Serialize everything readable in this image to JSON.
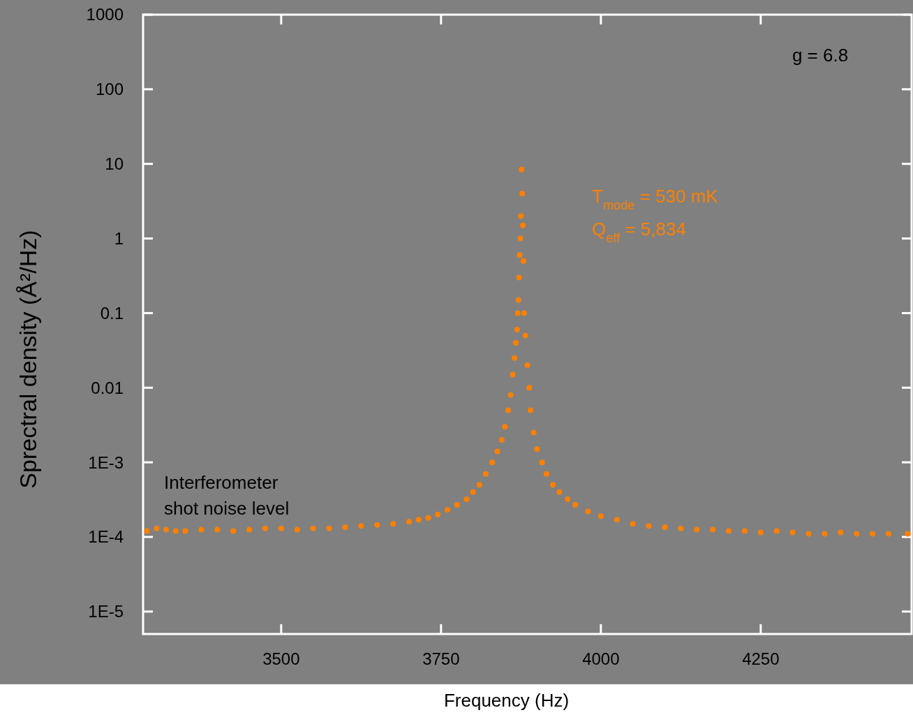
{
  "chart_data": {
    "type": "scatter",
    "xlabel": "Frequency (Hz)",
    "ylabel": "Sprectral density (Å²/Hz)",
    "x": [
      3290,
      3305,
      3320,
      3335,
      3350,
      3375,
      3400,
      3425,
      3450,
      3475,
      3500,
      3525,
      3550,
      3575,
      3600,
      3625,
      3650,
      3675,
      3700,
      3715,
      3730,
      3745,
      3760,
      3775,
      3790,
      3800,
      3810,
      3820,
      3830,
      3838,
      3845,
      3850,
      3855,
      3859,
      3862,
      3865,
      3867,
      3869,
      3870,
      3871,
      3872,
      3873,
      3874,
      3875,
      3876,
      3877,
      3878,
      3879,
      3880,
      3882,
      3885,
      3888,
      3890,
      3895,
      3900,
      3908,
      3915,
      3925,
      3935,
      3948,
      3960,
      3980,
      4000,
      4025,
      4050,
      4075,
      4100,
      4125,
      4150,
      4175,
      4200,
      4225,
      4250,
      4275,
      4300,
      4325,
      4350,
      4375,
      4400,
      4425,
      4450,
      4480
    ],
    "series": [
      {
        "color": "#ff8000",
        "values": [
          0.00012,
          0.00013,
          0.000125,
          0.00012,
          0.00012,
          0.000125,
          0.000125,
          0.00012,
          0.000125,
          0.00013,
          0.00013,
          0.000125,
          0.00013,
          0.00013,
          0.000135,
          0.00014,
          0.000145,
          0.00015,
          0.00016,
          0.00017,
          0.00018,
          0.0002,
          0.00023,
          0.00027,
          0.00032,
          0.0004,
          0.0005,
          0.0007,
          0.001,
          0.0014,
          0.002,
          0.003,
          0.005,
          0.008,
          0.015,
          0.025,
          0.04,
          0.06,
          0.1,
          0.15,
          0.3,
          0.6,
          1,
          2,
          8.4,
          4,
          1.5,
          0.5,
          0.1,
          0.05,
          0.02,
          0.01,
          0.005,
          0.0025,
          0.0015,
          0.001,
          0.0007,
          0.0005,
          0.0004,
          0.00032,
          0.00027,
          0.00022,
          0.00019,
          0.00017,
          0.00015,
          0.00014,
          0.000135,
          0.00013,
          0.000125,
          0.000125,
          0.00012,
          0.00012,
          0.000115,
          0.00012,
          0.000115,
          0.00011,
          0.00011,
          0.000115,
          0.00011,
          0.00011,
          0.00011,
          0.00011
        ]
      }
    ],
    "xlim": [
      3284,
      4486
    ],
    "xticks": [
      3500,
      3750,
      4000,
      4250
    ],
    "log": "y",
    "ylim": [
      5e-06,
      1000
    ],
    "yticks": [
      1000,
      100,
      10,
      1,
      0.1,
      0.01,
      {
        "value": 0.001,
        "label": "1E-3"
      },
      {
        "value": 0.0001,
        "label": "1E-4"
      },
      {
        "value": 1e-05,
        "label": "1E-5"
      }
    ],
    "marker": "circle",
    "annotations": [
      "g = 6.8",
      "T$_{mode}$ = 530 mK",
      "Q$_{eff}$ = 5,834",
      "Interferometer shot noise level"
    ]
  }
}
